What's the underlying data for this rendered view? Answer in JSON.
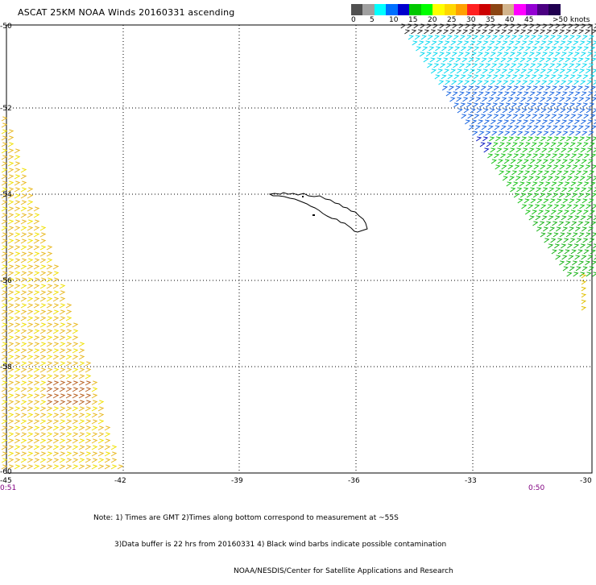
{
  "title": "ASCAT 25KM NOAA Winds 20160331 ascending",
  "colorbar": {
    "colors": [
      "#505050",
      "#a0a0a0",
      "#00ffff",
      "#0070ff",
      "#0000cd",
      "#00c800",
      "#00ff00",
      "#ffff00",
      "#ffd700",
      "#ffa000",
      "#ff2020",
      "#cc0000",
      "#8b4513",
      "#d2b48c",
      "#ff00ff",
      "#9400d3",
      "#4b0082",
      "#200050"
    ],
    "labels": [
      "0",
      "5",
      "10",
      "15",
      "20",
      "25",
      "30",
      "35",
      "40",
      "45",
      ">50 knots"
    ]
  },
  "axes": {
    "lat_labels": [
      "-50",
      "-52",
      "-54",
      "-56",
      "-58",
      "-60"
    ],
    "lon_labels": [
      "-45",
      "-42",
      "-39",
      "-36",
      "-33",
      "-30"
    ],
    "start_time": "0:51",
    "end_time": "0:50"
  },
  "notes": [
    "Note: 1) Times are GMT 2)Times along bottom correspond to measurement at ~55S",
    "3)Data buffer is 22 hrs from 20160331 4) Black wind barbs indicate possible contamination",
    "NOAA/NESDIS/Center for Satellite Applications and Research"
  ]
}
